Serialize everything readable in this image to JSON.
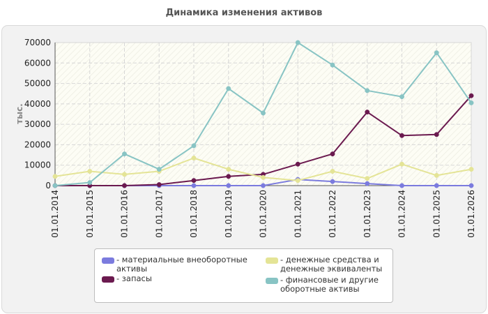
{
  "chart_data": {
    "type": "line",
    "title": "Динамика изменения активов",
    "ylabel": "тыс.",
    "xlabel": "",
    "categories": [
      "01.01.2014",
      "01.01.2015",
      "01.01.2016",
      "01.01.2017",
      "01.01.2018",
      "01.01.2019",
      "01.01.2020",
      "01.01.2021",
      "01.01.2022",
      "01.01.2023",
      "01.01.2024",
      "01.01.2025",
      "01.01.2026"
    ],
    "y_ticks": [
      "0",
      "10000",
      "20000",
      "30000",
      "40000",
      "50000",
      "60000",
      "70000"
    ],
    "ylim": [
      0,
      70000
    ],
    "grid": true,
    "legend_position": "bottom",
    "series": [
      {
        "name": "- материальные внеоборотные активы",
        "color": "#7b7bde",
        "values": [
          0,
          0,
          0,
          0,
          0,
          0,
          0,
          3000,
          2000,
          1000,
          0,
          0,
          0
        ]
      },
      {
        "name": "- запасы",
        "color": "#6b1a4f",
        "values": [
          0,
          0,
          0,
          500,
          2500,
          4500,
          5500,
          10500,
          15500,
          36000,
          24500,
          25000,
          44000
        ]
      },
      {
        "name": "- денежные средства и денежные эквиваленты",
        "color": "#e4e496",
        "values": [
          4500,
          7000,
          5500,
          7000,
          13500,
          8000,
          4000,
          2500,
          7000,
          3500,
          10500,
          5000,
          8000
        ]
      },
      {
        "name": "- финансовые и другие оборотные активы",
        "color": "#88c4c4",
        "values": [
          0,
          1500,
          15500,
          8000,
          19500,
          47500,
          35500,
          70000,
          59000,
          46500,
          43500,
          65000,
          40500
        ]
      }
    ]
  }
}
